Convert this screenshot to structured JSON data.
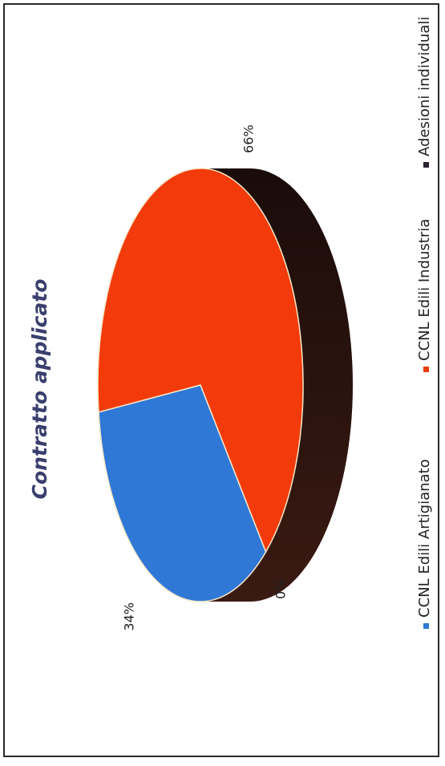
{
  "chart_data": {
    "type": "pie",
    "title": "Contratto applicato",
    "categories": [
      "CCNL Edili Artigianato",
      "CCNL Edili Industria",
      "Adesioni individuali"
    ],
    "values": [
      34,
      66,
      0
    ],
    "data_labels": [
      "34%",
      "66%",
      "0%"
    ],
    "colors": [
      "#2f78d6",
      "#f23a0b",
      "#2a2230"
    ],
    "legend_position": "bottom",
    "title_color": "#3a3f6e"
  }
}
